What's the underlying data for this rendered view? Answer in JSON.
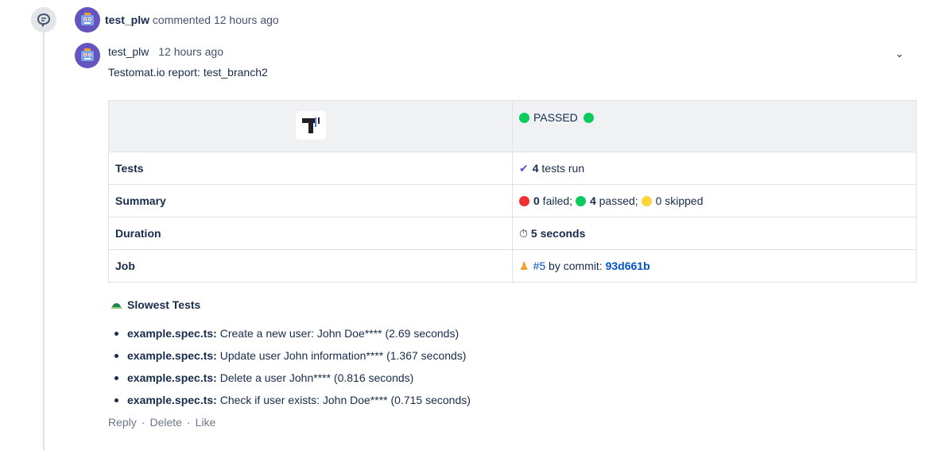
{
  "activity": {
    "user": "test_plw",
    "action": "commented",
    "time": "12 hours ago"
  },
  "comment": {
    "user": "test_plw",
    "time": "12 hours ago",
    "title": "Testomat.io report: test_branch2"
  },
  "report": {
    "status": "PASSED",
    "rows": [
      {
        "label": "Tests",
        "count": "4",
        "text": " tests run"
      },
      {
        "label": "Summary",
        "failed": "0",
        "failed_text": " failed; ",
        "passed": "4",
        "passed_text": " passed; ",
        "skipped_text": "0 skipped"
      },
      {
        "label": "Duration",
        "value": "5 seconds"
      },
      {
        "label": "Job",
        "job": "#5",
        "by": " by commit: ",
        "commit": "93d661b"
      }
    ],
    "colors": {
      "green": "#0ccb5e",
      "red": "#f03030",
      "yellow": "#ffd43b"
    }
  },
  "slowest": {
    "title": "Slowest Tests",
    "items": [
      {
        "file": "example.spec.ts:",
        "text": " Create a new user: John Doe**** (2.69 seconds)"
      },
      {
        "file": "example.spec.ts:",
        "text": " Update user John information**** (1.367 seconds)"
      },
      {
        "file": "example.spec.ts:",
        "text": " Delete a user John**** (0.816 seconds)"
      },
      {
        "file": "example.spec.ts:",
        "text": " Check if user exists: John Doe**** (0.715 seconds)"
      }
    ]
  },
  "actions": {
    "reply": "Reply",
    "delete": "Delete",
    "like": "Like",
    "sep": "·"
  }
}
